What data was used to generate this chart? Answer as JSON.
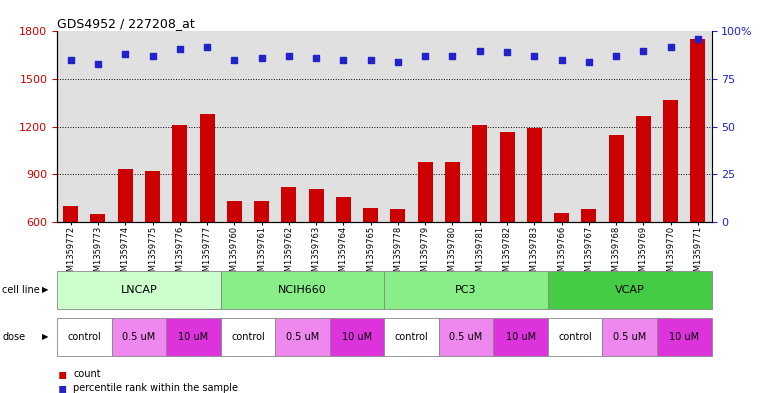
{
  "title": "GDS4952 / 227208_at",
  "samples": [
    "GSM1359772",
    "GSM1359773",
    "GSM1359774",
    "GSM1359775",
    "GSM1359776",
    "GSM1359777",
    "GSM1359760",
    "GSM1359761",
    "GSM1359762",
    "GSM1359763",
    "GSM1359764",
    "GSM1359765",
    "GSM1359778",
    "GSM1359779",
    "GSM1359780",
    "GSM1359781",
    "GSM1359782",
    "GSM1359783",
    "GSM1359766",
    "GSM1359767",
    "GSM1359768",
    "GSM1359769",
    "GSM1359770",
    "GSM1359771"
  ],
  "bar_values": [
    700,
    648,
    935,
    920,
    1210,
    1280,
    730,
    730,
    820,
    810,
    760,
    690,
    680,
    975,
    980,
    1210,
    1170,
    1190,
    660,
    680,
    1150,
    1270,
    1370,
    1750
  ],
  "percentile_values_pct": [
    85,
    83,
    88,
    87,
    91,
    92,
    85,
    86,
    87,
    86,
    85,
    85,
    84,
    87,
    87,
    90,
    89,
    87,
    85,
    84,
    87,
    90,
    92,
    96
  ],
  "ylim_left": [
    600,
    1800
  ],
  "ylim_right": [
    0,
    100
  ],
  "yticks_left": [
    600,
    900,
    1200,
    1500,
    1800
  ],
  "yticks_right": [
    0,
    25,
    50,
    75,
    100
  ],
  "bar_color": "#cc0000",
  "dot_color": "#2222cc",
  "grid_yticks": [
    900,
    1200,
    1500
  ],
  "cell_lines": [
    {
      "name": "LNCAP",
      "start": 0,
      "end": 6,
      "color": "#ccffcc"
    },
    {
      "name": "NCIH660",
      "start": 6,
      "end": 12,
      "color": "#88ee88"
    },
    {
      "name": "PC3",
      "start": 12,
      "end": 18,
      "color": "#88ee88"
    },
    {
      "name": "VCAP",
      "start": 18,
      "end": 24,
      "color": "#44cc44"
    }
  ],
  "doses": [
    {
      "label": "control",
      "start": 0,
      "end": 2,
      "color": "#ffffff"
    },
    {
      "label": "0.5 uM",
      "start": 2,
      "end": 4,
      "color": "#ee88ee"
    },
    {
      "label": "10 uM",
      "start": 4,
      "end": 6,
      "color": "#dd44dd"
    },
    {
      "label": "control",
      "start": 6,
      "end": 8,
      "color": "#ffffff"
    },
    {
      "label": "0.5 uM",
      "start": 8,
      "end": 10,
      "color": "#ee88ee"
    },
    {
      "label": "10 uM",
      "start": 10,
      "end": 12,
      "color": "#dd44dd"
    },
    {
      "label": "control",
      "start": 12,
      "end": 14,
      "color": "#ffffff"
    },
    {
      "label": "0.5 uM",
      "start": 14,
      "end": 16,
      "color": "#ee88ee"
    },
    {
      "label": "10 uM",
      "start": 16,
      "end": 18,
      "color": "#dd44dd"
    },
    {
      "label": "control",
      "start": 18,
      "end": 20,
      "color": "#ffffff"
    },
    {
      "label": "0.5 uM",
      "start": 20,
      "end": 22,
      "color": "#ee88ee"
    },
    {
      "label": "10 uM",
      "start": 22,
      "end": 24,
      "color": "#dd44dd"
    }
  ],
  "col_bg_color": "#e0e0e0",
  "bg_color": "#ffffff",
  "tick_label_fontsize": 6.0,
  "bar_width": 0.55
}
